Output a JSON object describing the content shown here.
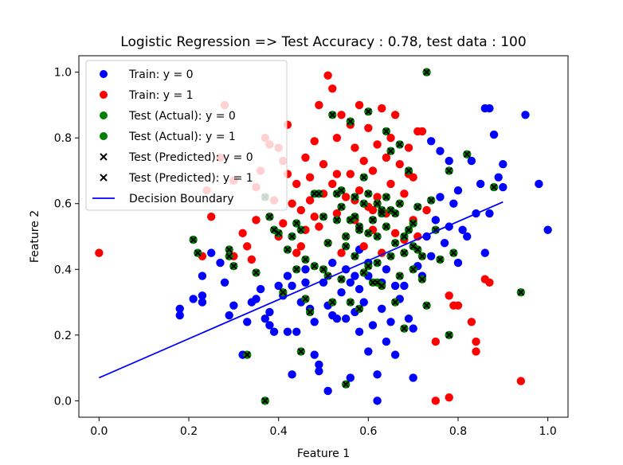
{
  "chart_data": {
    "type": "scatter",
    "title": "Logistic Regression => Test Accuracy : 0.78, test data : 100",
    "xlabel": "Feature 1",
    "ylabel": "Feature 2",
    "xlim": [
      -0.045,
      1.045
    ],
    "ylim": [
      -0.05,
      1.05
    ],
    "x_ticks": [
      "0.0",
      "0.2",
      "0.4",
      "0.6",
      "0.8",
      "1.0"
    ],
    "y_ticks": [
      "0.0",
      "0.2",
      "0.4",
      "0.6",
      "0.8",
      "1.0"
    ],
    "grid": false,
    "legend_position": "top-left",
    "colors": {
      "class0": "#0000ff",
      "class1": "#ff0000",
      "test": "#008000",
      "predicted": "#000000",
      "boundary": "#0000ff"
    },
    "legend": [
      {
        "label": "Train: y = 0",
        "marker": "dot",
        "color": "#0000ff"
      },
      {
        "label": "Train: y = 1",
        "marker": "dot",
        "color": "#ff0000"
      },
      {
        "label": "Test (Actual): y = 0",
        "marker": "dot",
        "color": "#008000"
      },
      {
        "label": "Test (Actual): y = 1",
        "marker": "dot",
        "color": "#008000"
      },
      {
        "label": "Test (Predicted): y = 0",
        "marker": "x",
        "color": "#000000"
      },
      {
        "label": "Test (Predicted): y = 1",
        "marker": "x",
        "color": "#000000"
      },
      {
        "label": "Decision Boundary",
        "marker": "line",
        "color": "#0000ff"
      }
    ],
    "decision_boundary": {
      "x": [
        0.0,
        0.9
      ],
      "y": [
        0.07,
        0.605
      ]
    },
    "series": [
      {
        "name": "Train: y = 0",
        "points": [
          [
            0.18,
            0.28
          ],
          [
            0.18,
            0.26
          ],
          [
            0.21,
            0.31
          ],
          [
            0.23,
            0.32
          ],
          [
            0.23,
            0.38
          ],
          [
            0.23,
            0.3
          ],
          [
            0.25,
            0.45
          ],
          [
            0.27,
            0.42
          ],
          [
            0.28,
            0.36
          ],
          [
            0.29,
            0.26
          ],
          [
            0.3,
            0.29
          ],
          [
            0.32,
            0.14
          ],
          [
            0.33,
            0.24
          ],
          [
            0.34,
            0.3
          ],
          [
            0.35,
            0.31
          ],
          [
            0.36,
            0.34
          ],
          [
            0.37,
            0.25
          ],
          [
            0.38,
            0.23
          ],
          [
            0.38,
            0.27
          ],
          [
            0.39,
            0.21
          ],
          [
            0.4,
            0.35
          ],
          [
            0.41,
            0.32
          ],
          [
            0.42,
            0.38
          ],
          [
            0.42,
            0.21
          ],
          [
            0.43,
            0.08
          ],
          [
            0.43,
            0.35
          ],
          [
            0.44,
            0.21
          ],
          [
            0.45,
            0.3
          ],
          [
            0.46,
            0.36
          ],
          [
            0.47,
            0.28
          ],
          [
            0.48,
            0.24
          ],
          [
            0.48,
            0.14
          ],
          [
            0.49,
            0.11
          ],
          [
            0.49,
            0.09
          ],
          [
            0.5,
            0.36
          ],
          [
            0.51,
            0.29
          ],
          [
            0.51,
            0.03
          ],
          [
            0.52,
            0.26
          ],
          [
            0.53,
            0.25
          ],
          [
            0.54,
            0.33
          ],
          [
            0.55,
            0.25
          ],
          [
            0.56,
            0.36
          ],
          [
            0.56,
            0.07
          ],
          [
            0.57,
            0.27
          ],
          [
            0.57,
            0.38
          ],
          [
            0.58,
            0.21
          ],
          [
            0.58,
            0.34
          ],
          [
            0.59,
            0.3
          ],
          [
            0.6,
            0.15
          ],
          [
            0.6,
            0.38
          ],
          [
            0.61,
            0.23
          ],
          [
            0.62,
            0.08
          ],
          [
            0.62,
            0.0
          ],
          [
            0.63,
            0.28
          ],
          [
            0.63,
            0.36
          ],
          [
            0.64,
            0.18
          ],
          [
            0.65,
            0.24
          ],
          [
            0.66,
            0.35
          ],
          [
            0.66,
            0.14
          ],
          [
            0.67,
            0.31
          ],
          [
            0.68,
            0.35
          ],
          [
            0.69,
            0.25
          ],
          [
            0.7,
            0.07
          ],
          [
            0.7,
            0.22
          ],
          [
            0.71,
            0.41
          ],
          [
            0.72,
            0.38
          ],
          [
            0.73,
            0.5
          ],
          [
            0.74,
            0.44
          ],
          [
            0.75,
            0.55
          ],
          [
            0.76,
            0.62
          ],
          [
            0.77,
            0.48
          ],
          [
            0.78,
            0.53
          ],
          [
            0.79,
            0.6
          ],
          [
            0.8,
            0.42
          ],
          [
            0.8,
            0.64
          ],
          [
            0.81,
            0.52
          ],
          [
            0.82,
            0.5
          ],
          [
            0.83,
            0.73
          ],
          [
            0.84,
            0.57
          ],
          [
            0.85,
            0.66
          ],
          [
            0.86,
            0.89
          ],
          [
            0.86,
            0.45
          ],
          [
            0.87,
            0.89
          ],
          [
            0.87,
            0.57
          ],
          [
            0.88,
            0.81
          ],
          [
            0.89,
            0.68
          ],
          [
            0.9,
            0.72
          ],
          [
            0.9,
            0.65
          ],
          [
            0.95,
            0.87
          ],
          [
            0.98,
            0.66
          ],
          [
            1.0,
            0.52
          ],
          [
            0.74,
            0.79
          ],
          [
            0.76,
            0.76
          ],
          [
            0.78,
            0.73
          ],
          [
            0.55,
            0.4
          ],
          [
            0.52,
            0.42
          ],
          [
            0.6,
            0.42
          ],
          [
            0.64,
            0.4
          ],
          [
            0.46,
            0.4
          ],
          [
            0.58,
            0.46
          ]
        ]
      },
      {
        "name": "Train: y = 1",
        "points": [
          [
            0.0,
            0.45
          ],
          [
            0.23,
            0.44
          ],
          [
            0.24,
            0.64
          ],
          [
            0.25,
            0.56
          ],
          [
            0.27,
            0.74
          ],
          [
            0.28,
            0.9
          ],
          [
            0.3,
            0.67
          ],
          [
            0.3,
            0.44
          ],
          [
            0.32,
            0.51
          ],
          [
            0.33,
            0.47
          ],
          [
            0.34,
            0.43
          ],
          [
            0.35,
            0.55
          ],
          [
            0.36,
            0.7
          ],
          [
            0.37,
            0.8
          ],
          [
            0.38,
            0.78
          ],
          [
            0.39,
            0.61
          ],
          [
            0.4,
            0.77
          ],
          [
            0.4,
            0.5
          ],
          [
            0.41,
            0.73
          ],
          [
            0.42,
            0.84
          ],
          [
            0.42,
            0.69
          ],
          [
            0.43,
            0.6
          ],
          [
            0.44,
            0.66
          ],
          [
            0.44,
            0.45
          ],
          [
            0.45,
            0.58
          ],
          [
            0.46,
            0.74
          ],
          [
            0.46,
            0.52
          ],
          [
            0.47,
            0.68
          ],
          [
            0.48,
            0.56
          ],
          [
            0.48,
            0.79
          ],
          [
            0.49,
            0.9
          ],
          [
            0.5,
            0.63
          ],
          [
            0.5,
            0.72
          ],
          [
            0.51,
            0.99
          ],
          [
            0.51,
            0.48
          ],
          [
            0.52,
            0.95
          ],
          [
            0.52,
            0.66
          ],
          [
            0.53,
            0.57
          ],
          [
            0.53,
            0.8
          ],
          [
            0.54,
            0.87
          ],
          [
            0.55,
            0.62
          ],
          [
            0.55,
            0.5
          ],
          [
            0.56,
            0.69
          ],
          [
            0.56,
            0.84
          ],
          [
            0.57,
            0.77
          ],
          [
            0.57,
            0.55
          ],
          [
            0.58,
            0.64
          ],
          [
            0.58,
            0.9
          ],
          [
            0.59,
            0.73
          ],
          [
            0.59,
            0.47
          ],
          [
            0.6,
            0.59
          ],
          [
            0.6,
            0.83
          ],
          [
            0.61,
            0.7
          ],
          [
            0.61,
            0.52
          ],
          [
            0.62,
            0.78
          ],
          [
            0.62,
            0.62
          ],
          [
            0.63,
            0.89
          ],
          [
            0.63,
            0.45
          ],
          [
            0.64,
            0.74
          ],
          [
            0.64,
            0.57
          ],
          [
            0.65,
            0.8
          ],
          [
            0.65,
            0.66
          ],
          [
            0.66,
            0.51
          ],
          [
            0.66,
            0.87
          ],
          [
            0.67,
            0.72
          ],
          [
            0.67,
            0.6
          ],
          [
            0.68,
            0.63
          ],
          [
            0.68,
            0.49
          ],
          [
            0.69,
            0.77
          ],
          [
            0.7,
            0.68
          ],
          [
            0.7,
            0.55
          ],
          [
            0.71,
            0.82
          ],
          [
            0.72,
            0.82
          ],
          [
            0.73,
            0.58
          ],
          [
            0.75,
            0.18
          ],
          [
            0.75,
            0.0
          ],
          [
            0.78,
            0.01
          ],
          [
            0.78,
            0.32
          ],
          [
            0.79,
            0.29
          ],
          [
            0.8,
            0.29
          ],
          [
            0.83,
            0.24
          ],
          [
            0.84,
            0.18
          ],
          [
            0.84,
            0.15
          ],
          [
            0.86,
            0.37
          ],
          [
            0.87,
            0.36
          ],
          [
            0.94,
            0.06
          ],
          [
            0.45,
            0.47
          ],
          [
            0.49,
            0.53
          ],
          [
            0.54,
            0.45
          ],
          [
            0.57,
            0.61
          ],
          [
            0.61,
            0.58
          ],
          [
            0.64,
            0.53
          ],
          [
            0.68,
            0.45
          ],
          [
            0.71,
            0.5
          ],
          [
            0.38,
            0.56
          ],
          [
            0.35,
            0.65
          ],
          [
            0.41,
            0.54
          ],
          [
            0.47,
            0.61
          ],
          [
            0.53,
            0.69
          ],
          [
            0.69,
            0.69
          ]
        ]
      },
      {
        "name": "Test (Actual)",
        "points": [
          [
            0.21,
            0.49
          ],
          [
            0.22,
            0.45
          ],
          [
            0.29,
            0.46
          ],
          [
            0.29,
            0.44
          ],
          [
            0.3,
            0.41
          ],
          [
            0.33,
            0.14
          ],
          [
            0.37,
            0.0
          ],
          [
            0.39,
            0.52
          ],
          [
            0.4,
            0.51
          ],
          [
            0.41,
            0.33
          ],
          [
            0.42,
            0.46
          ],
          [
            0.43,
            0.5
          ],
          [
            0.44,
            0.4
          ],
          [
            0.44,
            0.54
          ],
          [
            0.45,
            0.15
          ],
          [
            0.46,
            0.43
          ],
          [
            0.47,
            0.27
          ],
          [
            0.48,
            0.41
          ],
          [
            0.49,
            0.63
          ],
          [
            0.5,
            0.4
          ],
          [
            0.51,
            0.38
          ],
          [
            0.52,
            0.3
          ],
          [
            0.52,
            0.87
          ],
          [
            0.53,
            0.63
          ],
          [
            0.54,
            0.37
          ],
          [
            0.54,
            0.64
          ],
          [
            0.55,
            0.5
          ],
          [
            0.55,
            0.05
          ],
          [
            0.56,
            0.55
          ],
          [
            0.56,
            0.85
          ],
          [
            0.57,
            0.62
          ],
          [
            0.57,
            0.44
          ],
          [
            0.58,
            0.53
          ],
          [
            0.58,
            0.28
          ],
          [
            0.59,
            0.68
          ],
          [
            0.59,
            0.39
          ],
          [
            0.6,
            0.51
          ],
          [
            0.6,
            0.88
          ],
          [
            0.61,
            0.36
          ],
          [
            0.61,
            0.55
          ],
          [
            0.62,
            0.42
          ],
          [
            0.62,
            0.6
          ],
          [
            0.63,
            0.57
          ],
          [
            0.63,
            0.35
          ],
          [
            0.64,
            0.82
          ],
          [
            0.64,
            0.53
          ],
          [
            0.65,
            0.44
          ],
          [
            0.65,
            0.76
          ],
          [
            0.66,
            0.3
          ],
          [
            0.66,
            0.48
          ],
          [
            0.67,
            0.78
          ],
          [
            0.67,
            0.6
          ],
          [
            0.68,
            0.45
          ],
          [
            0.68,
            0.22
          ],
          [
            0.69,
            0.7
          ],
          [
            0.69,
            0.52
          ],
          [
            0.7,
            0.4
          ],
          [
            0.71,
            0.59
          ],
          [
            0.72,
            0.44
          ],
          [
            0.72,
            0.37
          ],
          [
            0.73,
            1.0
          ],
          [
            0.73,
            0.29
          ],
          [
            0.74,
            0.61
          ],
          [
            0.75,
            0.52
          ],
          [
            0.76,
            0.43
          ],
          [
            0.78,
            0.2
          ],
          [
            0.78,
            0.7
          ],
          [
            0.79,
            0.45
          ],
          [
            0.82,
            0.75
          ],
          [
            0.88,
            0.65
          ],
          [
            0.94,
            0.33
          ],
          [
            0.37,
            0.62
          ],
          [
            0.35,
            0.39
          ],
          [
            0.38,
            0.56
          ],
          [
            0.62,
            0.36
          ],
          [
            0.56,
            0.3
          ],
          [
            0.48,
            0.63
          ],
          [
            0.53,
            0.55
          ],
          [
            0.6,
            0.63
          ],
          [
            0.63,
            0.58
          ],
          [
            0.55,
            0.47
          ],
          [
            0.46,
            0.31
          ],
          [
            0.68,
            0.5
          ],
          [
            0.7,
            0.54
          ],
          [
            0.57,
            0.56
          ],
          [
            0.6,
            0.41
          ],
          [
            0.64,
            0.62
          ],
          [
            0.67,
            0.38
          ],
          [
            0.51,
            0.48
          ],
          [
            0.59,
            0.6
          ],
          [
            0.45,
            0.52
          ],
          [
            0.7,
            0.47
          ],
          [
            0.62,
            0.5
          ],
          [
            0.58,
            0.52
          ],
          [
            0.71,
            0.46
          ],
          [
            0.66,
            0.57
          ],
          [
            0.5,
            0.56
          ],
          [
            0.54,
            0.59
          ],
          [
            0.61,
            0.55
          ],
          [
            0.65,
            0.58
          ]
        ]
      }
    ]
  }
}
